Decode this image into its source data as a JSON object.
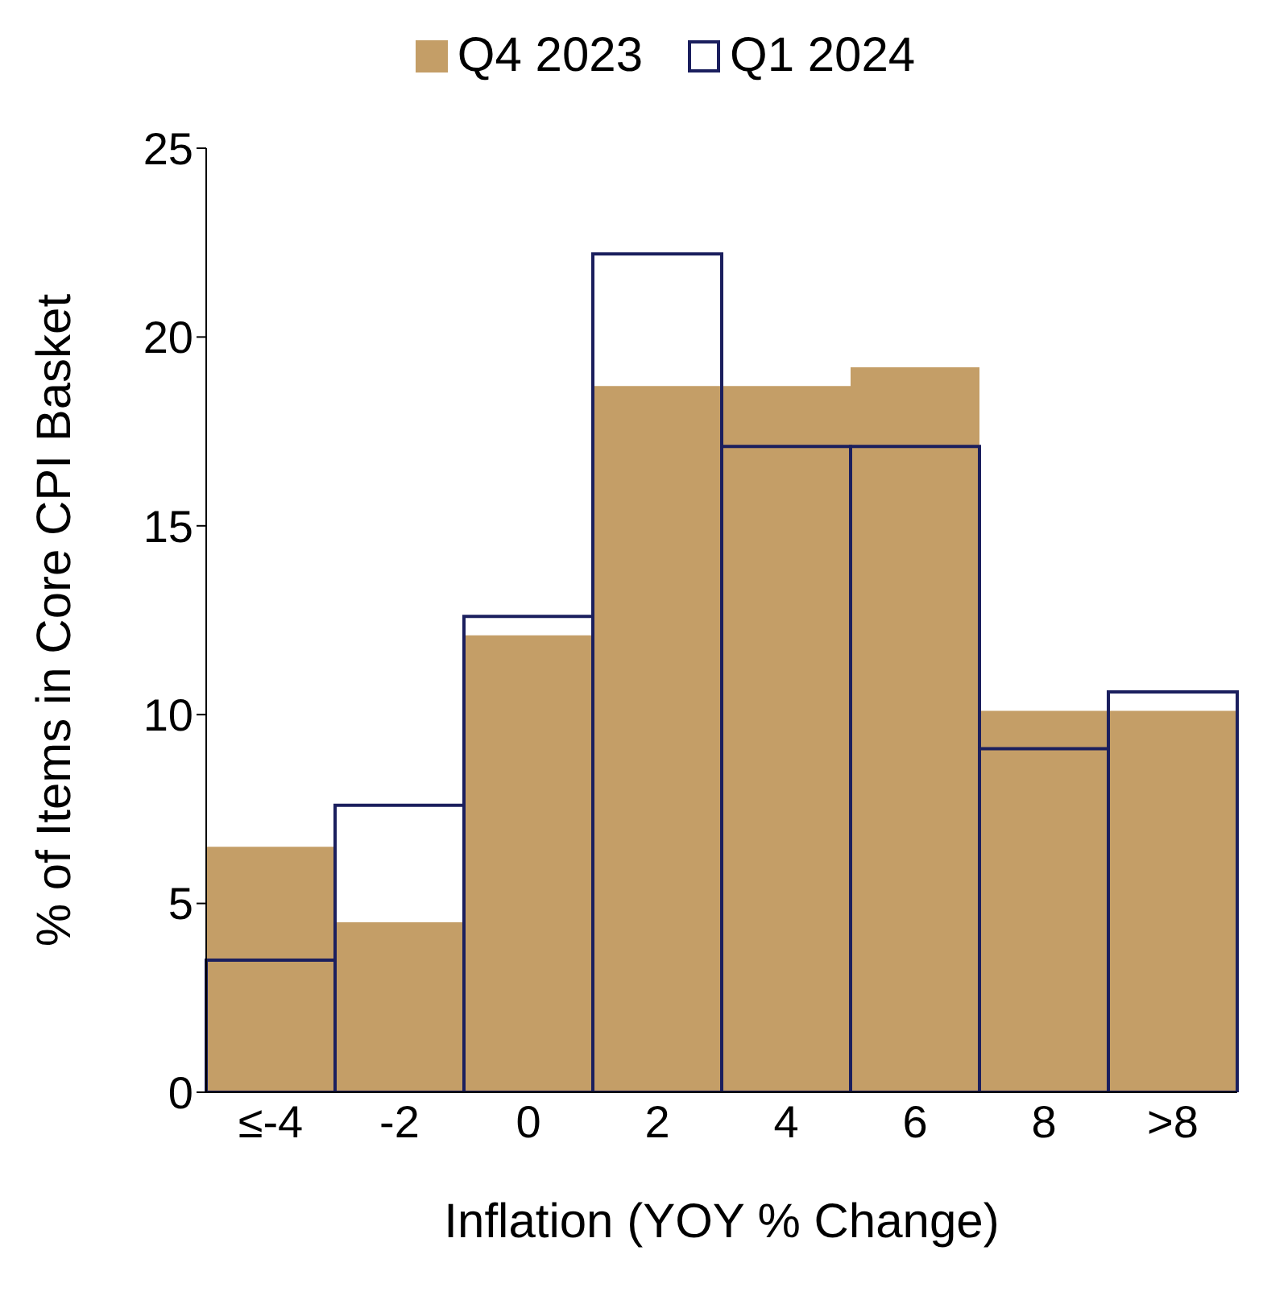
{
  "chart_data": {
    "type": "bar",
    "xlabel": "Inflation (YOY % Change)",
    "ylabel": "% of Items in Core CPI Basket",
    "categories": [
      "≤-4",
      "-2",
      "0",
      "2",
      "4",
      "6",
      "8",
      ">8"
    ],
    "series": [
      {
        "name": "Q4 2023",
        "color": "#c49e67",
        "values": [
          6.5,
          4.5,
          12.1,
          18.7,
          18.7,
          19.2,
          10.1,
          10.1
        ]
      },
      {
        "name": "Q1 2024",
        "color": "#1b1f5e",
        "values": [
          3.5,
          7.6,
          12.6,
          22.2,
          17.1,
          17.1,
          9.1,
          10.6
        ]
      }
    ],
    "ylim": [
      0,
      25
    ],
    "yticks": [
      0,
      5,
      10,
      15,
      20,
      25
    ],
    "grid": false,
    "legend": "top"
  }
}
